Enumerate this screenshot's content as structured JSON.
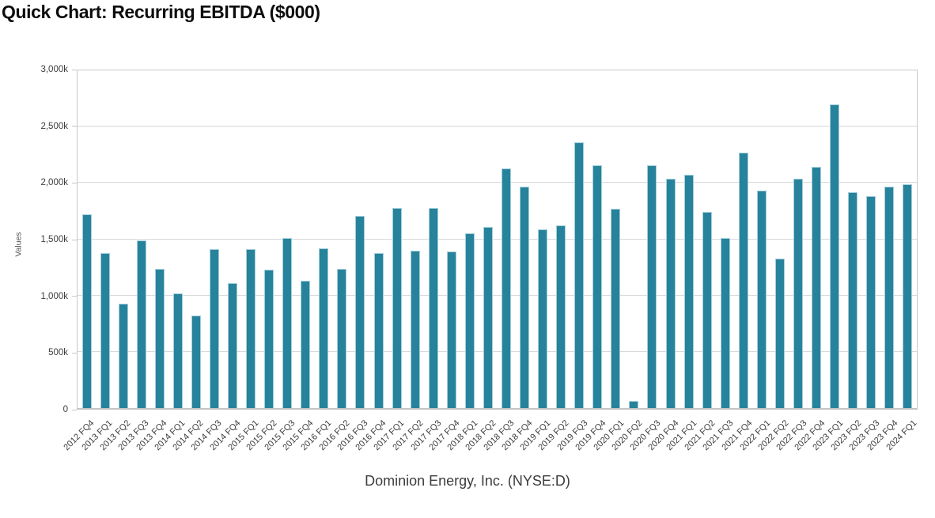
{
  "title": "Quick Chart: Recurring EBITDA ($000)",
  "chart": {
    "y_axis_title": "Values",
    "subtitle": "Dominion Energy, Inc. (NYSE:D)",
    "bar_color": "#27829b",
    "bar_edge_color": "#a3cfdc",
    "grid_color": "#d9d9d9",
    "frame_color": "#c8c8c8",
    "axis_text_color": "#3c3c3c"
  },
  "chart_data": {
    "type": "bar",
    "title": "Quick Chart: Recurring EBITDA ($000)",
    "xlabel": "Dominion Energy, Inc. (NYSE:D)",
    "ylabel": "Values",
    "ylim": [
      0,
      3000
    ],
    "y_tick_values": [
      0,
      500,
      1000,
      1500,
      2000,
      2500,
      3000
    ],
    "y_tick_labels": [
      "0",
      "500k",
      "1,000k",
      "1,500k",
      "2,000k",
      "2,500k",
      "3,000k"
    ],
    "grid": "horizontal",
    "legend_position": "none",
    "categories": [
      "2012 FQ4",
      "2013 FQ1",
      "2013 FQ2",
      "2013 FQ3",
      "2013 FQ4",
      "2014 FQ1",
      "2014 FQ2",
      "2014 FQ3",
      "2014 FQ4",
      "2015 FQ1",
      "2015 FQ2",
      "2015 FQ3",
      "2015 FQ4",
      "2016 FQ1",
      "2016 FQ2",
      "2016 FQ3",
      "2016 FQ4",
      "2017 FQ1",
      "2017 FQ2",
      "2017 FQ3",
      "2017 FQ4",
      "2018 FQ1",
      "2018 FQ2",
      "2018 FQ3",
      "2018 FQ4",
      "2019 FQ1",
      "2019 FQ2",
      "2019 FQ3",
      "2019 FQ4",
      "2020 FQ1",
      "2020 FQ2",
      "2020 FQ3",
      "2020 FQ4",
      "2021 FQ1",
      "2021 FQ2",
      "2021 FQ3",
      "2021 FQ4",
      "2022 FQ1",
      "2022 FQ2",
      "2022 FQ3",
      "2022 FQ4",
      "2023 FQ1",
      "2023 FQ2",
      "2023 FQ3",
      "2023 FQ4",
      "2024 FQ1"
    ],
    "values": [
      1720,
      1380,
      930,
      1490,
      1240,
      1020,
      820,
      1410,
      1110,
      1410,
      1230,
      1510,
      1130,
      1420,
      1240,
      1710,
      1380,
      1780,
      1400,
      1780,
      1390,
      1550,
      1610,
      2130,
      1970,
      1590,
      1620,
      2360,
      2160,
      1770,
      60,
      2160,
      2040,
      2070,
      1740,
      1510,
      2270,
      1930,
      1330,
      2040,
      2140,
      2700,
      1920,
      1880,
      1970,
      1990
    ]
  }
}
